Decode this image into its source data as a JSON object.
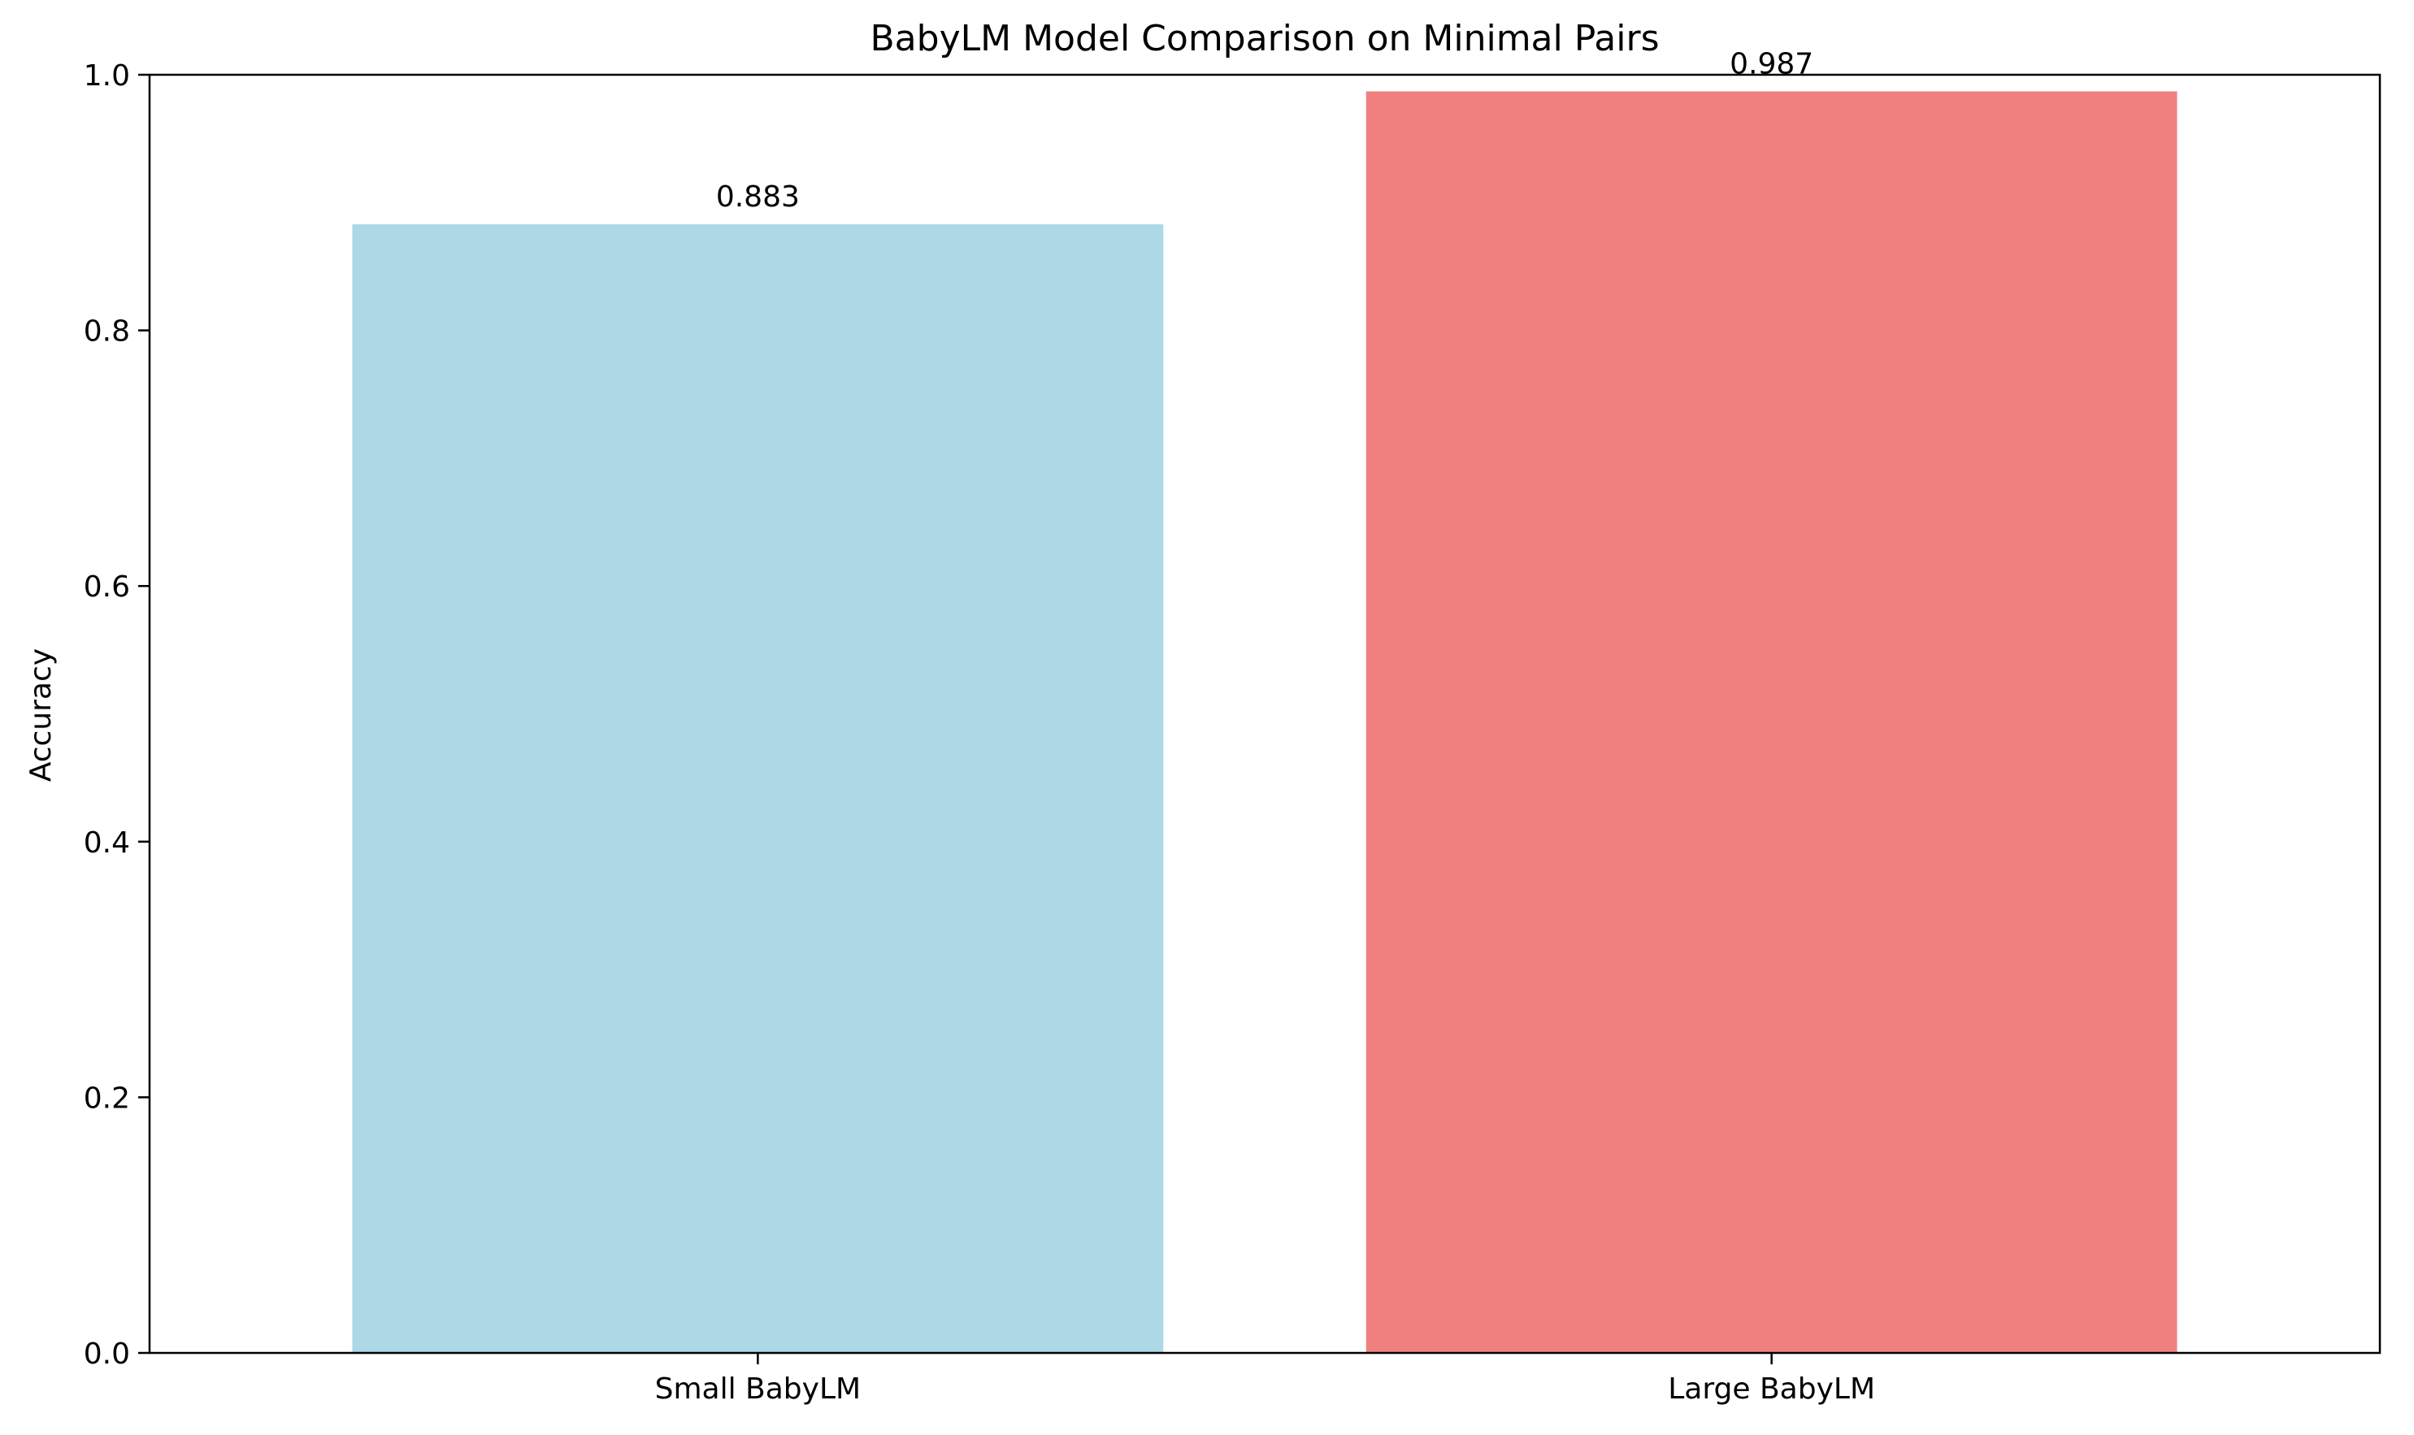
{
  "chart_data": {
    "type": "bar",
    "title": "BabyLM Model Comparison on Minimal Pairs",
    "xlabel": "",
    "ylabel": "Accuracy",
    "categories": [
      "Small BabyLM",
      "Large BabyLM"
    ],
    "values": [
      0.883,
      0.987
    ],
    "value_labels": [
      "0.883",
      "0.987"
    ],
    "colors": [
      "#add8e6",
      "#f08080"
    ],
    "ylim": [
      0,
      1.0
    ],
    "yticks": [
      0.0,
      0.2,
      0.4,
      0.6,
      0.8,
      1.0
    ],
    "ytick_labels": [
      "0.0",
      "0.2",
      "0.4",
      "0.6",
      "0.8",
      "1.0"
    ],
    "grid": false,
    "legend": "none"
  }
}
